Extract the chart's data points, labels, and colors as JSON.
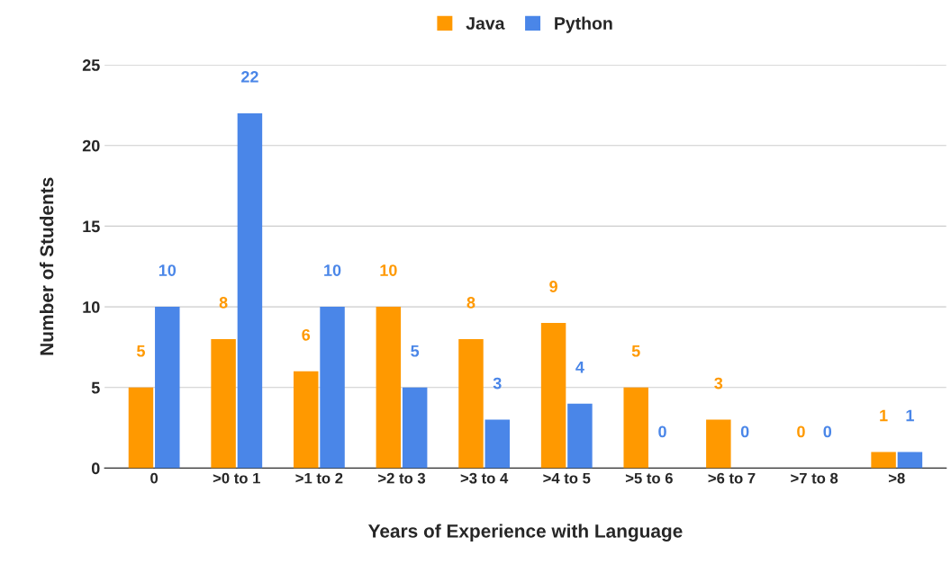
{
  "chart_data": {
    "type": "bar",
    "xlabel": "Years of Experience with Language",
    "ylabel": "Number of Students",
    "categories": [
      "0",
      ">0 to 1",
      ">1 to 2",
      ">2 to 3",
      ">3 to 4",
      ">4 to 5",
      ">5 to 6",
      ">6 to 7",
      ">7 to 8",
      ">8"
    ],
    "series": [
      {
        "name": "Java",
        "color": "#ff9900",
        "values": [
          5,
          8,
          6,
          10,
          8,
          9,
          5,
          3,
          0,
          1
        ]
      },
      {
        "name": "Python",
        "color": "#4a86e8",
        "values": [
          10,
          22,
          10,
          5,
          3,
          4,
          0,
          0,
          0,
          1
        ]
      }
    ],
    "ylim": [
      0,
      25
    ],
    "yticks": [
      0,
      5,
      10,
      15,
      20,
      25
    ],
    "grid": "y",
    "legend": "top",
    "data_labels": true
  }
}
